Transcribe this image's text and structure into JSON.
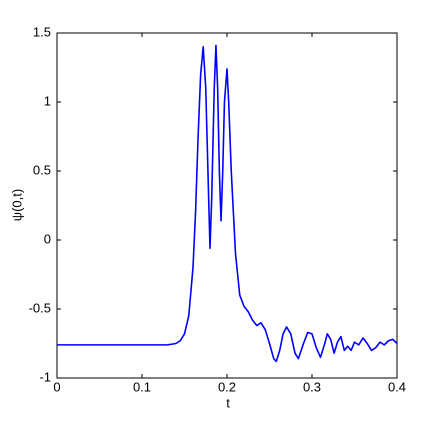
{
  "chart_data": {
    "type": "line",
    "xlabel": "t",
    "ylabel": "ψ(0,t)",
    "x": [
      0,
      0.05,
      0.1,
      0.13,
      0.14,
      0.145,
      0.15,
      0.155,
      0.16,
      0.163,
      0.166,
      0.169,
      0.172,
      0.175,
      0.178,
      0.18,
      0.182,
      0.185,
      0.187,
      0.189,
      0.191,
      0.193,
      0.195,
      0.197,
      0.2,
      0.202,
      0.205,
      0.21,
      0.215,
      0.22,
      0.225,
      0.23,
      0.235,
      0.24,
      0.245,
      0.25,
      0.255,
      0.258,
      0.262,
      0.266,
      0.27,
      0.275,
      0.28,
      0.284,
      0.29,
      0.295,
      0.3,
      0.305,
      0.31,
      0.315,
      0.318,
      0.322,
      0.326,
      0.33,
      0.334,
      0.338,
      0.342,
      0.346,
      0.35,
      0.355,
      0.36,
      0.365,
      0.37,
      0.375,
      0.38,
      0.385,
      0.39,
      0.395,
      0.4
    ],
    "values": [
      -0.76,
      -0.76,
      -0.76,
      -0.76,
      -0.75,
      -0.73,
      -0.68,
      -0.55,
      -0.2,
      0.2,
      0.75,
      1.2,
      1.4,
      1.1,
      0.4,
      -0.06,
      0.3,
      1.1,
      1.41,
      1.1,
      0.5,
      0.14,
      0.5,
      1.0,
      1.24,
      1.0,
      0.5,
      -0.1,
      -0.4,
      -0.48,
      -0.52,
      -0.58,
      -0.62,
      -0.6,
      -0.65,
      -0.75,
      -0.86,
      -0.88,
      -0.8,
      -0.68,
      -0.63,
      -0.68,
      -0.82,
      -0.86,
      -0.75,
      -0.67,
      -0.68,
      -0.78,
      -0.85,
      -0.75,
      -0.68,
      -0.72,
      -0.82,
      -0.74,
      -0.7,
      -0.8,
      -0.77,
      -0.8,
      -0.74,
      -0.76,
      -0.71,
      -0.75,
      -0.8,
      -0.78,
      -0.74,
      -0.76,
      -0.73,
      -0.72,
      -0.75
    ],
    "color": "#0000ff",
    "xlim": [
      0,
      0.4
    ],
    "xticks": [
      0,
      0.1,
      0.2,
      0.3,
      0.4
    ],
    "ylim": [
      -1,
      1.5
    ],
    "yticks": [
      -1,
      -0.5,
      0,
      0.5,
      1,
      1.5
    ],
    "grid": false
  }
}
